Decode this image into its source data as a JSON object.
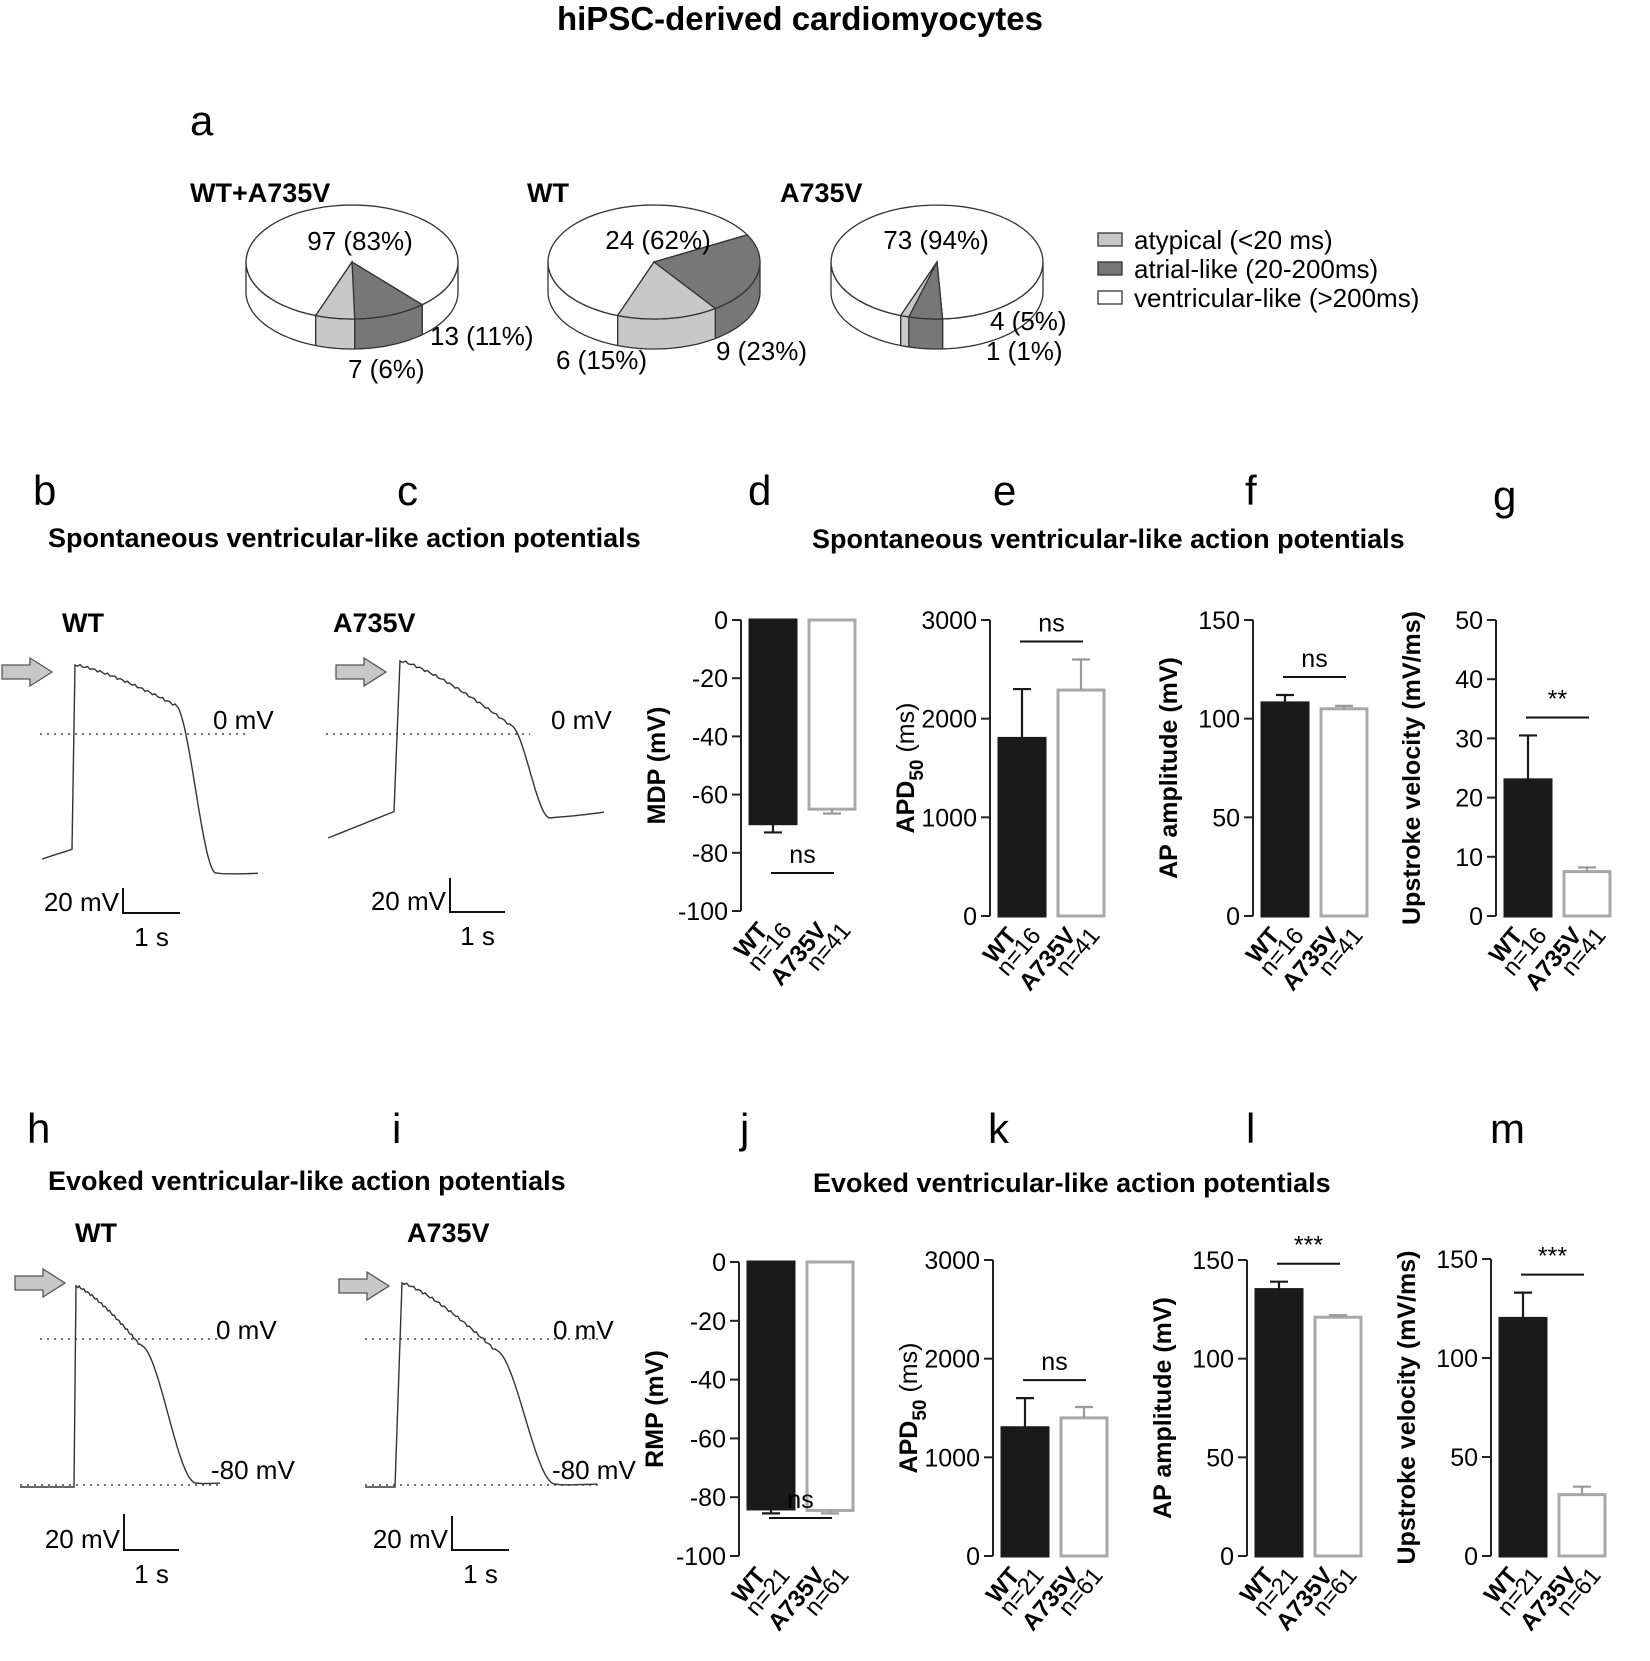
{
  "title": "hiPSC-derived cardiomyocytes",
  "panel_letters": [
    "a",
    "b",
    "c",
    "d",
    "e",
    "f",
    "g",
    "h",
    "i",
    "j",
    "k",
    "l",
    "m"
  ],
  "sections": {
    "spont_left": "Spontaneous ventricular-like action potentials",
    "spont_right": "Spontaneous ventricular-like action potentials",
    "evoked_left": "Evoked ventricular-like action potentials",
    "evoked_right": "Evoked ventricular-like action potentials"
  },
  "legend": [
    {
      "label": "atypical (<20 ms)",
      "color": "#c8c8c8"
    },
    {
      "label": "atrial-like (20-200ms)",
      "color": "#777777"
    },
    {
      "label": "ventricular-like (>200ms)",
      "color": "#ffffff"
    }
  ],
  "traces": {
    "b": {
      "label": "WT",
      "zero_label": "0 mV",
      "scale_v": "20 mV",
      "scale_t": "1 s"
    },
    "c": {
      "label": "A735V",
      "zero_label": "0 mV",
      "scale_v": "20 mV",
      "scale_t": "1 s"
    },
    "h": {
      "label": "WT",
      "zero_label": "0 mV",
      "rest_label": "-80 mV",
      "scale_v": "20 mV",
      "scale_t": "1 s"
    },
    "i": {
      "label": "A735V",
      "zero_label": "0 mV",
      "rest_label": "-80 mV",
      "scale_v": "20 mV",
      "scale_t": "1 s"
    }
  },
  "chart_data": [
    {
      "panel": "a",
      "type": "pie",
      "title": "WT+A735V",
      "slices": [
        {
          "category": "ventricular-like (>200ms)",
          "value": 97,
          "label": "97 (83%)",
          "color": "#ffffff"
        },
        {
          "category": "atrial-like (20-200ms)",
          "value": 13,
          "label": "13 (11%)",
          "color": "#777777"
        },
        {
          "category": "atypical (<20 ms)",
          "value": 7,
          "label": "7 (6%)",
          "color": "#c8c8c8"
        }
      ]
    },
    {
      "panel": "a",
      "type": "pie",
      "title": "WT",
      "slices": [
        {
          "category": "ventricular-like (>200ms)",
          "value": 24,
          "label": "24 (62%)",
          "color": "#ffffff"
        },
        {
          "category": "atrial-like (20-200ms)",
          "value": 9,
          "label": "9 (23%)",
          "color": "#777777"
        },
        {
          "category": "atypical (<20 ms)",
          "value": 6,
          "label": "6 (15%)",
          "color": "#c8c8c8"
        }
      ]
    },
    {
      "panel": "a",
      "type": "pie",
      "title": "A735V",
      "slices": [
        {
          "category": "ventricular-like (>200ms)",
          "value": 73,
          "label": "73 (94%)",
          "color": "#ffffff"
        },
        {
          "category": "atrial-like (20-200ms)",
          "value": 4,
          "label": "4 (5%)",
          "color": "#777777"
        },
        {
          "category": "atypical (<20 ms)",
          "value": 1,
          "label": "1 (1%)",
          "color": "#c8c8c8"
        }
      ]
    },
    {
      "panel": "d",
      "type": "bar",
      "ylabel": "MDP (mV)",
      "ylim": [
        -100,
        0
      ],
      "yticks": [
        0,
        -20,
        -40,
        -60,
        -80,
        -100
      ],
      "categories": [
        "WT",
        "A735V"
      ],
      "n": [
        "n=16",
        "n=41"
      ],
      "values": [
        -70,
        -65
      ],
      "errors": [
        3,
        1.5
      ],
      "sig": "ns"
    },
    {
      "panel": "e",
      "type": "bar",
      "ylabel": "APD",
      "ylabel_sub": "50",
      "ylabel_unit": "(ms)",
      "ylim": [
        0,
        3000
      ],
      "yticks": [
        0,
        1000,
        2000,
        3000
      ],
      "categories": [
        "WT",
        "A735V"
      ],
      "n": [
        "n=16",
        "n=41"
      ],
      "values": [
        1800,
        2290
      ],
      "errors": [
        500,
        310
      ],
      "sig": "ns"
    },
    {
      "panel": "f",
      "type": "bar",
      "ylabel": "AP amplitude (mV)",
      "ylim": [
        0,
        150
      ],
      "yticks": [
        0,
        50,
        100,
        150
      ],
      "categories": [
        "WT",
        "A735V"
      ],
      "n": [
        "n=16",
        "n=41"
      ],
      "values": [
        108,
        105
      ],
      "errors": [
        4,
        1.5
      ],
      "sig": "ns"
    },
    {
      "panel": "g",
      "type": "bar",
      "ylabel": "Upstroke velocity (mV/ms)",
      "ylim": [
        0,
        50
      ],
      "yticks": [
        0,
        10,
        20,
        30,
        40,
        50
      ],
      "categories": [
        "WT",
        "A735V"
      ],
      "n": [
        "n=16",
        "n=41"
      ],
      "values": [
        23,
        7.5
      ],
      "errors": [
        7.5,
        0.7
      ],
      "sig": "**"
    },
    {
      "panel": "j",
      "type": "bar",
      "ylabel": "RMP (mV)",
      "ylim": [
        -100,
        0
      ],
      "yticks": [
        0,
        -20,
        -40,
        -60,
        -80,
        -100
      ],
      "categories": [
        "WT",
        "A735V"
      ],
      "n": [
        "n=21",
        "n=61"
      ],
      "values": [
        -84,
        -84.5
      ],
      "errors": [
        1.5,
        1
      ],
      "sig": "ns"
    },
    {
      "panel": "k",
      "type": "bar",
      "ylabel": "APD",
      "ylabel_sub": "50",
      "ylabel_unit": "(ms)",
      "ylim": [
        0,
        3000
      ],
      "yticks": [
        0,
        1000,
        2000,
        3000
      ],
      "categories": [
        "WT",
        "A735V"
      ],
      "n": [
        "n=21",
        "n=61"
      ],
      "values": [
        1300,
        1400
      ],
      "errors": [
        300,
        110
      ],
      "sig": "ns"
    },
    {
      "panel": "l",
      "type": "bar",
      "ylabel": "AP amplitude (mV)",
      "ylim": [
        0,
        150
      ],
      "yticks": [
        0,
        50,
        100,
        150
      ],
      "categories": [
        "WT",
        "A735V"
      ],
      "n": [
        "n=21",
        "n=61"
      ],
      "values": [
        135,
        121
      ],
      "errors": [
        4,
        1
      ],
      "sig": "***"
    },
    {
      "panel": "m",
      "type": "bar",
      "ylabel": "Upstroke velocity (mV/ms)",
      "ylim": [
        0,
        150
      ],
      "yticks": [
        0,
        50,
        100,
        150
      ],
      "categories": [
        "WT",
        "A735V"
      ],
      "n": [
        "n=21",
        "n=61"
      ],
      "values": [
        120,
        31
      ],
      "errors": [
        13,
        4
      ],
      "sig": "***"
    }
  ]
}
